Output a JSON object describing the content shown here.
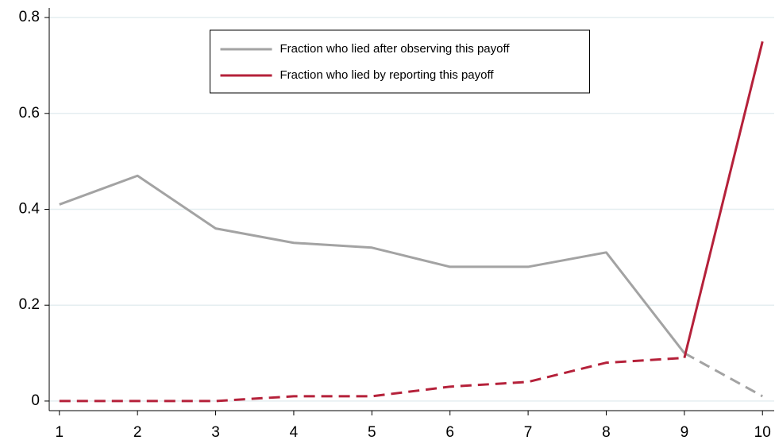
{
  "chart_data": {
    "type": "line",
    "x": [
      1,
      2,
      3,
      4,
      5,
      6,
      7,
      8,
      9,
      10
    ],
    "series": [
      {
        "name": "Fraction who lied after observing this payoff",
        "color": "#a3a3a3",
        "values": [
          0.41,
          0.47,
          0.36,
          0.33,
          0.32,
          0.28,
          0.28,
          0.31,
          0.1,
          0.01
        ],
        "segment_styles": [
          "solid",
          "solid",
          "solid",
          "solid",
          "solid",
          "solid",
          "solid",
          "solid",
          "dashed"
        ]
      },
      {
        "name": "Fraction who lied by reporting this payoff",
        "color": "#b5213a",
        "values": [
          0,
          0,
          0,
          0.01,
          0.01,
          0.03,
          0.04,
          0.08,
          0.09,
          0.75
        ],
        "segment_styles": [
          "dashed",
          "dashed",
          "dashed",
          "dashed",
          "dashed",
          "dashed",
          "dashed",
          "dashed",
          "solid"
        ]
      }
    ],
    "xlim": [
      0.87,
      10.15
    ],
    "xticks": [
      1,
      2,
      3,
      4,
      5,
      6,
      7,
      8,
      9,
      10
    ],
    "ylim": [
      -0.02,
      0.82
    ],
    "yticks": [
      0,
      0.2,
      0.4,
      0.6,
      0.8
    ],
    "grid": true,
    "legend_position": "top"
  }
}
